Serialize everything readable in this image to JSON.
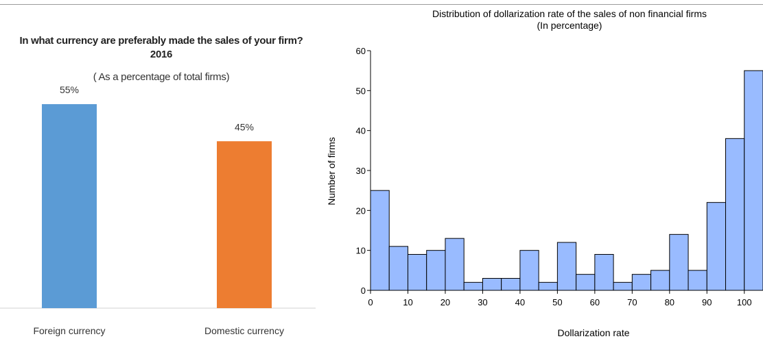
{
  "chart_data": [
    {
      "type": "bar",
      "title": "In what currency are preferably made the sales of your firm? 2016",
      "subtitle": "( As a percentage of total firms)",
      "categories": [
        "Foreign currency",
        "Domestic currency"
      ],
      "values": [
        55,
        45
      ],
      "data_labels": [
        "55%",
        "45%"
      ],
      "colors": [
        "#5b9bd5",
        "#ed7d31"
      ],
      "ylim": [
        0,
        60
      ],
      "grid": false,
      "legend": "none"
    },
    {
      "type": "bar",
      "title": "Distribution of dollarization rate of the sales of non financial firms",
      "subtitle": "(In percentage)",
      "xlabel": "Dollarization rate",
      "ylabel": "Number of firms",
      "bin_width": 5,
      "x": [
        0,
        5,
        10,
        15,
        20,
        25,
        30,
        35,
        40,
        45,
        50,
        55,
        60,
        65,
        70,
        75,
        80,
        85,
        90,
        95,
        100
      ],
      "values": [
        25,
        11,
        9,
        10,
        13,
        2,
        3,
        3,
        10,
        2,
        12,
        4,
        9,
        2,
        4,
        5,
        14,
        5,
        22,
        38,
        55
      ],
      "xticks": [
        "0",
        "10",
        "20",
        "30",
        "40",
        "50",
        "60",
        "70",
        "80",
        "90",
        "100"
      ],
      "yticks": [
        "0",
        "10",
        "20",
        "30",
        "40",
        "50",
        "60"
      ],
      "xlim": [
        0,
        105
      ],
      "ylim": [
        0,
        60
      ],
      "bar_color": "#99bbff",
      "grid": false,
      "legend": "none"
    }
  ]
}
